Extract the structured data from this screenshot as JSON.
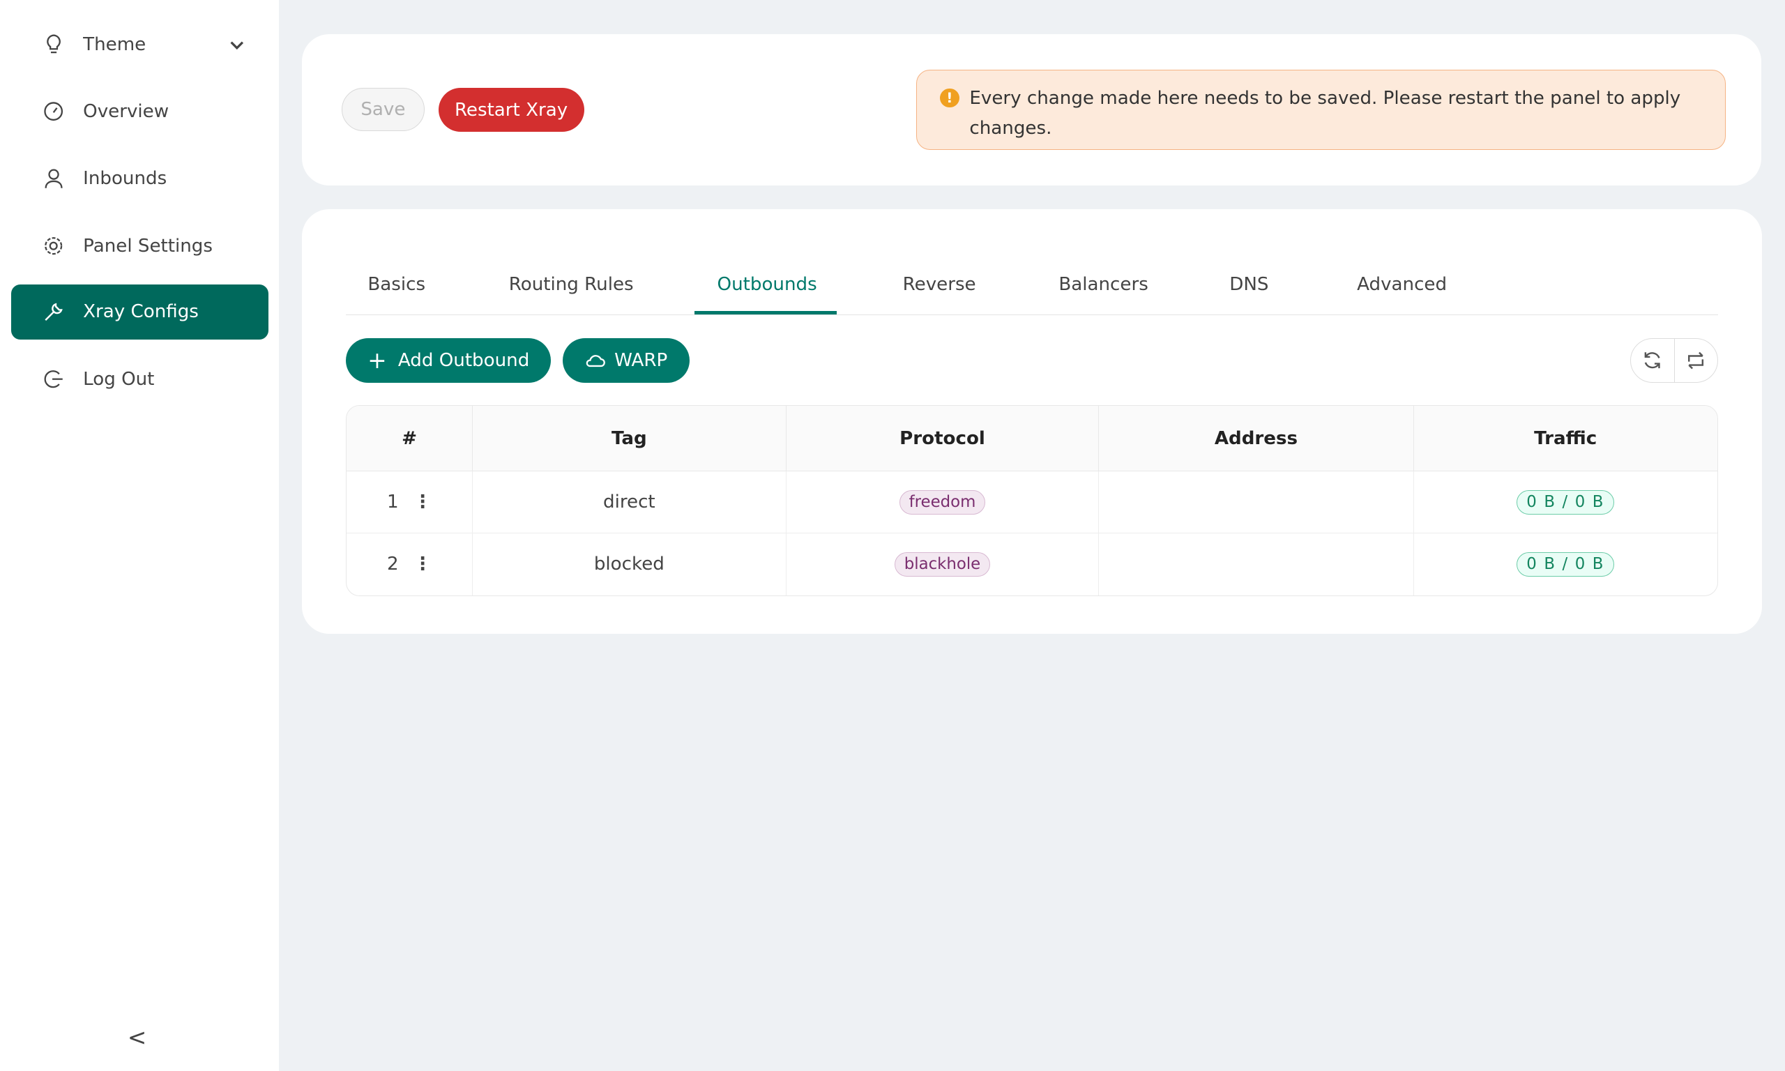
{
  "sidebar": {
    "items": [
      {
        "label": "Theme",
        "icon": "lightbulb-icon"
      },
      {
        "label": "Overview",
        "icon": "dashboard-icon"
      },
      {
        "label": "Inbounds",
        "icon": "user-icon"
      },
      {
        "label": "Panel Settings",
        "icon": "gear-icon"
      },
      {
        "label": "Xray Configs",
        "icon": "tool-icon",
        "active": true
      },
      {
        "label": "Log Out",
        "icon": "logout-icon"
      }
    ],
    "collapse": "<"
  },
  "toolbar": {
    "save": "Save",
    "restart": "Restart Xray"
  },
  "alert": {
    "text": "Every change made here needs to be saved. Please restart the panel to apply changes."
  },
  "tabs": [
    "Basics",
    "Routing Rules",
    "Outbounds",
    "Reverse",
    "Balancers",
    "DNS",
    "Advanced"
  ],
  "active_tab": "Outbounds",
  "actions": {
    "add": "Add Outbound",
    "warp": "WARP"
  },
  "table": {
    "headers": [
      "#",
      "Tag",
      "Protocol",
      "Address",
      "Traffic"
    ],
    "rows": [
      {
        "num": "1",
        "tag": "direct",
        "protocol": "freedom",
        "address": "",
        "traffic": "0 B / 0 B"
      },
      {
        "num": "2",
        "tag": "blocked",
        "protocol": "blackhole",
        "address": "",
        "traffic": "0 B / 0 B"
      }
    ]
  },
  "colors": {
    "primary": "#00695c",
    "danger": "#d32f2f",
    "alert_bg": "#fdeadb"
  }
}
